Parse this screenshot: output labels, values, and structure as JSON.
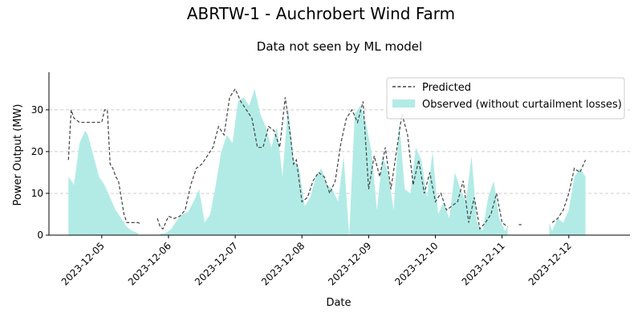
{
  "chart_data": {
    "type": "area",
    "suptitle": "ABRTW-1 - Auchrobert Wind Farm",
    "title": "Data not seen by ML model",
    "xlabel": "Date",
    "ylabel": "Power Output (MW)",
    "xlim": [
      "2023-12-04T05:00",
      "2023-12-12T22:00"
    ],
    "ylim": [
      0,
      39
    ],
    "yticks": [
      0,
      10,
      20,
      30
    ],
    "xticks": [
      "2023-12-05",
      "2023-12-06",
      "2023-12-07",
      "2023-12-08",
      "2023-12-09",
      "2023-12-10",
      "2023-12-11",
      "2023-12-12"
    ],
    "grid": "y-dashed",
    "legend": {
      "position": "top-right",
      "entries": [
        "Predicted",
        "Observed (without curtailment losses)"
      ]
    },
    "colors": {
      "predicted": "#404040",
      "observed": "#b2ebe6"
    },
    "series": [
      {
        "name": "Predicted",
        "style": "dashed-line",
        "x": [
          "2023-12-04T12:00",
          "2023-12-04T13:00",
          "2023-12-04T14:00",
          "2023-12-04T16:00",
          "2023-12-04T19:00",
          "2023-12-04T22:00",
          "2023-12-05T00:00",
          "2023-12-05T01:00",
          "2023-12-05T02:00",
          "2023-12-05T03:00",
          "2023-12-05T04:00",
          "2023-12-05T05:00",
          "2023-12-05T06:00",
          "2023-12-05T07:00",
          "2023-12-05T08:00",
          "2023-12-05T09:00",
          "2023-12-05T10:00",
          "2023-12-05T11:00",
          "2023-12-05T12:00",
          "2023-12-05T13:00",
          "2023-12-05T14:00",
          null,
          "2023-12-05T20:00",
          "2023-12-05T21:00",
          "2023-12-05T22:00",
          "2023-12-06T00:00",
          "2023-12-06T02:00",
          "2023-12-06T04:00",
          "2023-12-06T06:00",
          "2023-12-06T08:00",
          "2023-12-06T10:00",
          "2023-12-06T12:00",
          "2023-12-06T14:00",
          "2023-12-06T16:00",
          "2023-12-06T18:00",
          "2023-12-06T20:00",
          "2023-12-06T22:00",
          "2023-12-07T00:00",
          "2023-12-07T02:00",
          "2023-12-07T04:00",
          "2023-12-07T06:00",
          "2023-12-07T08:00",
          "2023-12-07T10:00",
          "2023-12-07T12:00",
          "2023-12-07T14:00",
          "2023-12-07T16:00",
          "2023-12-07T18:00",
          "2023-12-07T20:00",
          "2023-12-07T21:00",
          "2023-12-07T22:00",
          "2023-12-08T00:00",
          "2023-12-08T02:00",
          "2023-12-08T04:00",
          "2023-12-08T06:00",
          "2023-12-08T08:00",
          "2023-12-08T10:00",
          "2023-12-08T12:00",
          "2023-12-08T14:00",
          "2023-12-08T16:00",
          "2023-12-08T18:00",
          "2023-12-08T20:00",
          "2023-12-08T22:00",
          "2023-12-09T00:00",
          "2023-12-09T02:00",
          "2023-12-09T04:00",
          "2023-12-09T06:00",
          "2023-12-09T08:00",
          "2023-12-09T10:00",
          "2023-12-09T12:00",
          "2023-12-09T14:00",
          "2023-12-09T16:00",
          "2023-12-09T18:00",
          "2023-12-09T20:00",
          "2023-12-09T22:00",
          "2023-12-10T00:00",
          "2023-12-10T02:00",
          "2023-12-10T04:00",
          "2023-12-10T06:00",
          "2023-12-10T08:00",
          "2023-12-10T10:00",
          "2023-12-10T12:00",
          "2023-12-10T14:00",
          "2023-12-10T16:00",
          "2023-12-10T18:00",
          "2023-12-10T20:00",
          "2023-12-10T22:00",
          "2023-12-11T00:00",
          "2023-12-11T02:00",
          null,
          "2023-12-11T06:00",
          "2023-12-11T07:00",
          null,
          "2023-12-11T18:00",
          "2023-12-11T20:00",
          "2023-12-11T22:00",
          "2023-12-12T00:00",
          "2023-12-12T02:00",
          "2023-12-12T04:00",
          "2023-12-12T06:00"
        ],
        "values": [
          18,
          30,
          28,
          27,
          27,
          27,
          27,
          30,
          30,
          17,
          16,
          14,
          13,
          9,
          5,
          3,
          3,
          3,
          3,
          3,
          2.7,
          null,
          4,
          2,
          1.5,
          4.5,
          4,
          4.5,
          6,
          12,
          16,
          17,
          19,
          21,
          26,
          24,
          33,
          35,
          32,
          30,
          28,
          21,
          21,
          26,
          25,
          21,
          33,
          23,
          17,
          18,
          8,
          9,
          13,
          15,
          14,
          10,
          13,
          22,
          28,
          30,
          27,
          32,
          11,
          19,
          14,
          21,
          11,
          20,
          29,
          24,
          12,
          18,
          10,
          15,
          8,
          10,
          6,
          7,
          8,
          13,
          3,
          9,
          1.5,
          3,
          5,
          10,
          3,
          2,
          null,
          2.5,
          2.5,
          null,
          3,
          4,
          6,
          10,
          16,
          15,
          18
        ],
        "x_gaps_note": ""
      },
      {
        "name": "Observed (without curtailment losses)",
        "style": "filled-area",
        "x": [
          "2023-12-04T12:00",
          "2023-12-04T14:00",
          "2023-12-04T16:00",
          "2023-12-04T18:00",
          "2023-12-04T19:00",
          "2023-12-04T21:00",
          "2023-12-04T23:00",
          "2023-12-05T01:00",
          "2023-12-05T03:00",
          "2023-12-05T05:00",
          "2023-12-05T07:00",
          "2023-12-05T09:00",
          "2023-12-05T11:00",
          "2023-12-05T13:00",
          null,
          "2023-12-05T21:00",
          "2023-12-05T23:00",
          "2023-12-06T01:00",
          "2023-12-06T03:00",
          "2023-12-06T05:00",
          "2023-12-06T07:00",
          "2023-12-06T09:00",
          "2023-12-06T11:00",
          "2023-12-06T13:00",
          "2023-12-06T15:00",
          "2023-12-06T17:00",
          "2023-12-06T19:00",
          "2023-12-06T21:00",
          "2023-12-06T23:00",
          "2023-12-07T01:00",
          "2023-12-07T03:00",
          "2023-12-07T05:00",
          "2023-12-07T07:00",
          "2023-12-07T09:00",
          "2023-12-07T11:00",
          "2023-12-07T13:00",
          "2023-12-07T15:00",
          "2023-12-07T17:00",
          "2023-12-07T19:00",
          "2023-12-07T21:00",
          "2023-12-07T23:00",
          "2023-12-08T01:00",
          "2023-12-08T03:00",
          "2023-12-08T05:00",
          "2023-12-08T07:00",
          "2023-12-08T09:00",
          "2023-12-08T11:00",
          "2023-12-08T13:00",
          "2023-12-08T15:00",
          "2023-12-08T17:00",
          "2023-12-08T19:00",
          "2023-12-08T21:00",
          "2023-12-08T23:00",
          "2023-12-09T01:00",
          "2023-12-09T03:00",
          "2023-12-09T05:00",
          "2023-12-09T07:00",
          "2023-12-09T09:00",
          "2023-12-09T11:00",
          "2023-12-09T13:00",
          "2023-12-09T15:00",
          "2023-12-09T17:00",
          "2023-12-09T19:00",
          "2023-12-09T21:00",
          "2023-12-09T23:00",
          "2023-12-10T01:00",
          "2023-12-10T03:00",
          "2023-12-10T05:00",
          "2023-12-10T07:00",
          "2023-12-10T09:00",
          "2023-12-10T11:00",
          "2023-12-10T13:00",
          "2023-12-10T15:00",
          "2023-12-10T17:00",
          "2023-12-10T19:00",
          "2023-12-10T21:00",
          "2023-12-10T23:00",
          "2023-12-11T01:00",
          "2023-12-11T02:00",
          null,
          "2023-12-11T17:00",
          "2023-12-11T18:00",
          "2023-12-11T20:00",
          "2023-12-11T22:00",
          "2023-12-12T00:00",
          "2023-12-12T02:00",
          "2023-12-12T04:00",
          "2023-12-12T06:00"
        ],
        "values": [
          14,
          12,
          22,
          25,
          24,
          19,
          14,
          12,
          9,
          6,
          4,
          2,
          1,
          0.5,
          null,
          0.3,
          0.5,
          1.5,
          3.5,
          5,
          5.5,
          8,
          11,
          3,
          5,
          12,
          20,
          24,
          22,
          32,
          33,
          31,
          35,
          29,
          26,
          21,
          26,
          14,
          31,
          18,
          16,
          7,
          9,
          14,
          16,
          12,
          11,
          8,
          19,
          0,
          29,
          31,
          27,
          20,
          6,
          19,
          15,
          6,
          27,
          11,
          10,
          21,
          18,
          9,
          20,
          5,
          8,
          4,
          15,
          11,
          8,
          19,
          3,
          1,
          9,
          13,
          4,
          1,
          2,
          null,
          3,
          1,
          4,
          3,
          6,
          14,
          16,
          14
        ]
      }
    ]
  }
}
